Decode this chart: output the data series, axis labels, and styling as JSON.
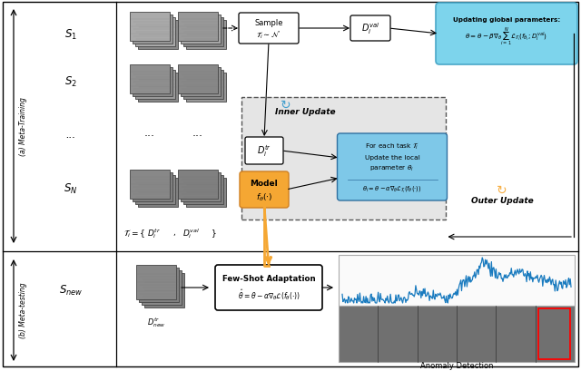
{
  "bg_color": "#ffffff",
  "panel_a_label": "(a) Meta-Training",
  "panel_b_label": "(b) Meta-testing",
  "scene_labels": [
    "$S_1$",
    "$S_2$",
    "...",
    "$S_N$"
  ],
  "update_box_title": "Updating global parameters:",
  "update_box_eq": "$\\theta = \\theta - \\beta \\nabla_{\\theta} \\sum_{i=1}^{N} \\mathcal{L}_{\\mathcal{T}_i}(f_{\\theta_i}; D_i^{val})$",
  "cyan_color": "#7dd4ec",
  "cyan_edge": "#4aa8c8",
  "orange_color": "#f5a733",
  "orange_edge": "#d08020",
  "blue_box_color": "#7ec8e8",
  "blue_box_edge": "#3070a0",
  "light_gray": "#e5e5e5",
  "mid_gray": "#999999",
  "dark_gray": "#555555"
}
